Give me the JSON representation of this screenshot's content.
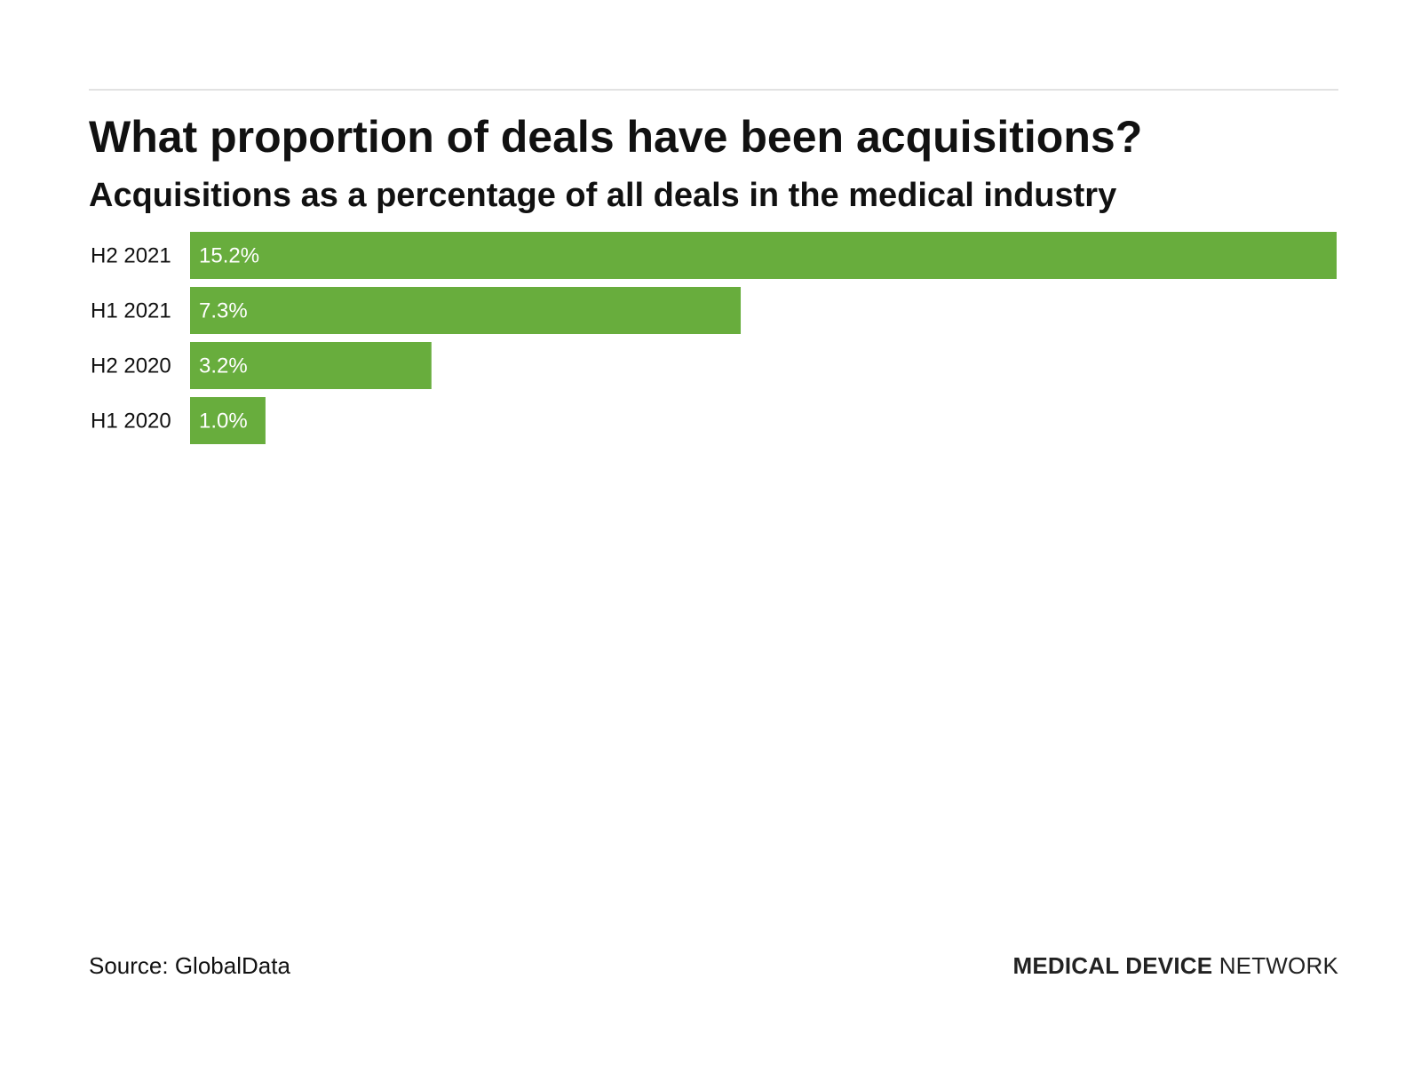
{
  "header": {
    "title": "What proportion of deals have been acquisitions?",
    "subtitle": "Acquisitions as a percentage of all deals in the medical industry"
  },
  "chart_data": {
    "type": "bar",
    "orientation": "horizontal",
    "categories": [
      "H2 2021",
      "H1 2021",
      "H2 2020",
      "H1 2020"
    ],
    "values": [
      15.2,
      7.3,
      3.2,
      1.0
    ],
    "value_labels": [
      "15.2%",
      "7.3%",
      "3.2%",
      "1.0%"
    ],
    "unit": "%",
    "xlim": [
      0,
      15.2
    ],
    "grid": false,
    "bar_color": "#68ad3d"
  },
  "footer": {
    "source": "Source: GlobalData",
    "brand_bold": "MEDICAL DEVICE",
    "brand_light": "NETWORK"
  },
  "colors": {
    "bar": "#68ad3d",
    "text": "#111111",
    "rule": "#e2e2e2"
  }
}
